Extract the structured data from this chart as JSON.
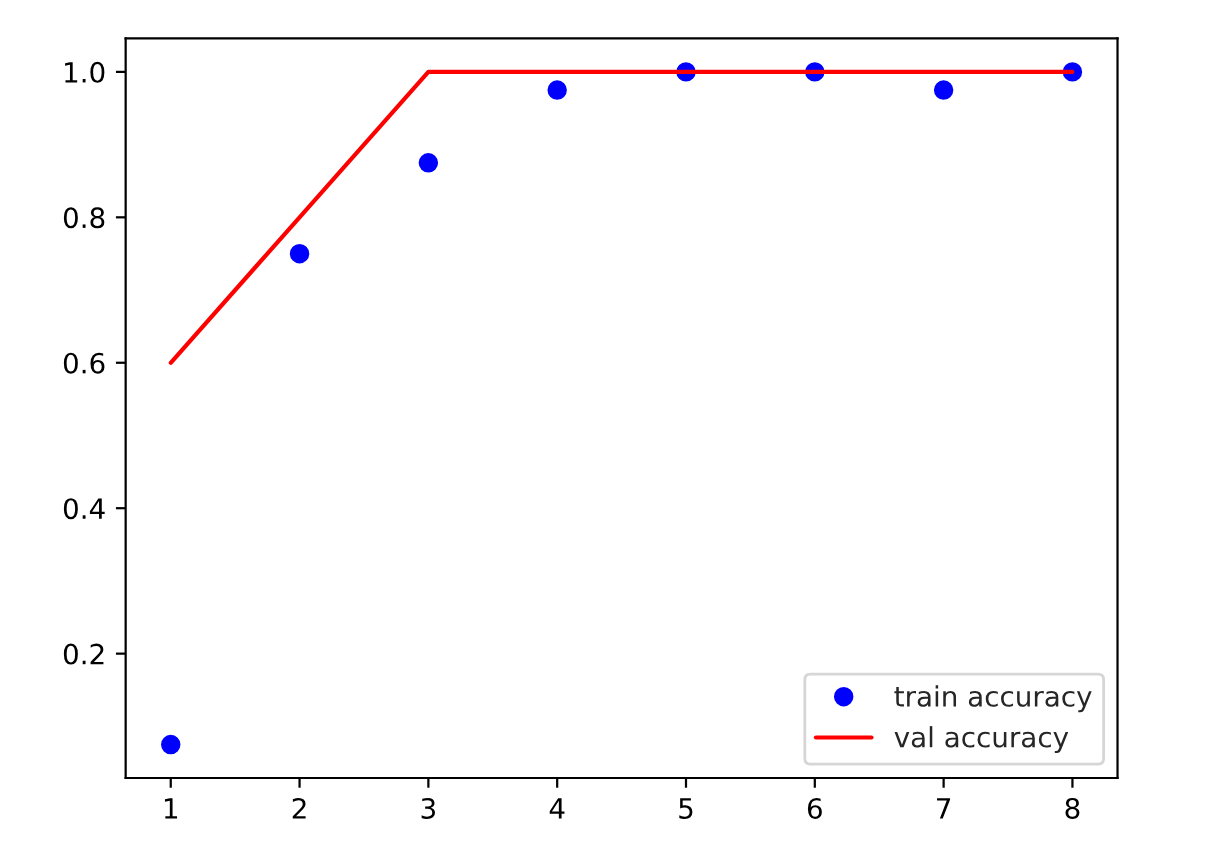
{
  "chart_data": {
    "type": "line",
    "x": [
      1,
      2,
      3,
      4,
      5,
      6,
      7,
      8
    ],
    "series": [
      {
        "name": "train accuracy",
        "type": "scatter",
        "color": "#0000ff",
        "marker": "circle",
        "values": [
          0.075,
          0.75,
          0.875,
          0.975,
          1.0,
          1.0,
          0.975,
          1.0
        ]
      },
      {
        "name": "val accuracy",
        "color": "#ff0000",
        "marker": "none",
        "values": [
          0.6,
          0.8,
          1.0,
          1.0,
          1.0,
          1.0,
          1.0,
          1.0
        ]
      }
    ],
    "xlim": [
      0.65,
      8.35
    ],
    "xticks": [
      1,
      2,
      3,
      4,
      5,
      6,
      7,
      8
    ],
    "ylim": [
      0.029,
      1.046
    ],
    "yticks": [
      {
        "value": 0.2,
        "label": "0.2"
      },
      {
        "value": 0.4,
        "label": "0.4"
      },
      {
        "value": 0.6,
        "label": "0.6"
      },
      {
        "value": 0.8,
        "label": "0.8"
      },
      {
        "value": 1.0,
        "label": "1.0"
      }
    ],
    "grid": false,
    "legend": "bottom right"
  }
}
